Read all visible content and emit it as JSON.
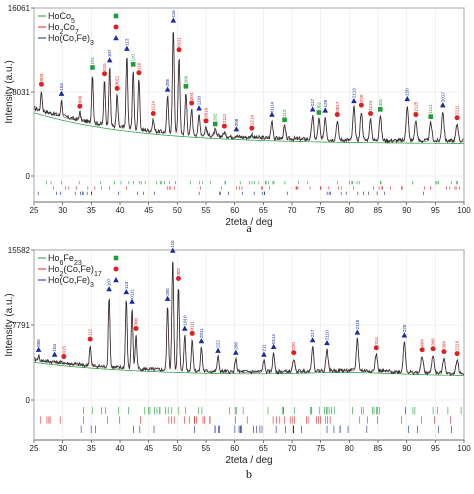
{
  "colors": {
    "ho2co17": "#1e9e3a",
    "ho1co5": "#e02020",
    "hocofe": "#1a2aa0",
    "observed": "#303030",
    "calc": "#c06080"
  },
  "chart_data": [
    {
      "type": "line",
      "panel_label": "a",
      "xlabel": "2teta / deg",
      "ylabel": "Intensity (a.u.)",
      "xlim": [
        25,
        100
      ],
      "ylim": [
        0,
        16061
      ],
      "yticks": [
        "0",
        "8031",
        "16061"
      ],
      "ytick_values": [
        0,
        8031,
        16061
      ],
      "xticks": [
        25,
        30,
        35,
        40,
        45,
        50,
        55,
        60,
        65,
        70,
        75,
        80,
        85,
        90,
        95,
        100
      ],
      "grid": true,
      "legend": {
        "position": "top-left",
        "entries": [
          {
            "label": "HoCo5",
            "color": "#1e9e3a",
            "marker": "square"
          },
          {
            "label": "Ho2Co7",
            "color": "#e02020",
            "marker": "circle"
          },
          {
            "label": "Ho(Co,Fe)3",
            "color": "#1a2aa0",
            "marker": "triangle"
          }
        ]
      },
      "peaks": [
        {
          "x": 26.3,
          "y": 8200,
          "label": "003",
          "phase": 1
        },
        {
          "x": 29.8,
          "y": 7300,
          "label": "104",
          "phase": 2
        },
        {
          "x": 33.0,
          "y": 6100,
          "label": "006",
          "phase": 1
        },
        {
          "x": 35.2,
          "y": 9800,
          "label": "101",
          "phase": 0
        },
        {
          "x": 37.3,
          "y": 9200,
          "label": "015",
          "phase": 1
        },
        {
          "x": 38.2,
          "y": 10500,
          "label": "107",
          "phase": 2
        },
        {
          "x": 39.5,
          "y": 7800,
          "label": "0011",
          "phase": 1
        },
        {
          "x": 41.2,
          "y": 11600,
          "label": "113",
          "phase": 2
        },
        {
          "x": 42.3,
          "y": 10100,
          "label": "110",
          "phase": 0
        },
        {
          "x": 43.3,
          "y": 9300,
          "label": "116",
          "phase": 1
        },
        {
          "x": 45.8,
          "y": 5400,
          "label": "1114",
          "phase": 1
        },
        {
          "x": 48.3,
          "y": 7700,
          "label": "205",
          "phase": 2
        },
        {
          "x": 49.3,
          "y": 14300,
          "label": "116",
          "phase": 2
        },
        {
          "x": 50.3,
          "y": 11500,
          "label": "0111",
          "phase": 1
        },
        {
          "x": 51.5,
          "y": 8000,
          "label": "200",
          "phase": 0
        },
        {
          "x": 52.5,
          "y": 6400,
          "label": "204",
          "phase": 1
        },
        {
          "x": 53.8,
          "y": 5900,
          "label": "1110",
          "phase": 2
        },
        {
          "x": 55.0,
          "y": 4700,
          "label": "2010",
          "phase": 1
        },
        {
          "x": 56.6,
          "y": 4400,
          "label": "202",
          "phase": 0
        },
        {
          "x": 58.2,
          "y": 4200,
          "label": "2111",
          "phase": 1
        },
        {
          "x": 60.3,
          "y": 3900,
          "label": "208",
          "phase": 2
        },
        {
          "x": 63.0,
          "y": 4000,
          "label": "1214",
          "phase": 1
        },
        {
          "x": 66.5,
          "y": 5300,
          "label": "0114",
          "phase": 2
        },
        {
          "x": 68.7,
          "y": 4800,
          "label": "113",
          "phase": 0
        },
        {
          "x": 73.6,
          "y": 5800,
          "label": "217",
          "phase": 2
        },
        {
          "x": 74.7,
          "y": 5500,
          "label": "302",
          "phase": 0
        },
        {
          "x": 75.8,
          "y": 5700,
          "label": "128",
          "phase": 2
        },
        {
          "x": 77.9,
          "y": 5300,
          "label": "0017",
          "phase": 1
        },
        {
          "x": 80.8,
          "y": 6600,
          "label": "2119",
          "phase": 2
        },
        {
          "x": 82.1,
          "y": 6200,
          "label": "220",
          "phase": 1
        },
        {
          "x": 83.7,
          "y": 5400,
          "label": "1124",
          "phase": 1
        },
        {
          "x": 85.4,
          "y": 5800,
          "label": "301",
          "phase": 0
        },
        {
          "x": 90.1,
          "y": 6800,
          "label": "220",
          "phase": 2
        },
        {
          "x": 91.6,
          "y": 5300,
          "label": "2125",
          "phase": 1
        },
        {
          "x": 94.2,
          "y": 5100,
          "label": "1111",
          "phase": 0
        },
        {
          "x": 96.3,
          "y": 6200,
          "label": "2017",
          "phase": 2
        },
        {
          "x": 98.8,
          "y": 5000,
          "label": "2111",
          "phase": 1
        }
      ]
    },
    {
      "type": "line",
      "panel_label": "b",
      "xlabel": "2teta / deg",
      "ylabel": "Intensity (a.u.)",
      "xlim": [
        25,
        100
      ],
      "ylim": [
        0,
        15582
      ],
      "yticks": [
        "0",
        "7791",
        "15582"
      ],
      "ytick_values": [
        0,
        7791,
        15582
      ],
      "xticks": [
        25,
        30,
        35,
        40,
        45,
        50,
        55,
        60,
        65,
        70,
        75,
        80,
        85,
        90,
        95,
        100
      ],
      "grid": true,
      "legend": {
        "position": "top-left",
        "entries": [
          {
            "label": "Ho6Fe23",
            "color": "#1e9e3a",
            "marker": "square"
          },
          {
            "label": "Ho2(Co,Fe)17",
            "color": "#e02020",
            "marker": "circle"
          },
          {
            "label": "Ho(Co,Fe)3",
            "color": "#1a2aa0",
            "marker": "triangle"
          }
        ]
      },
      "peaks": [
        {
          "x": 25.8,
          "y": 4600,
          "label": "006",
          "phase": 2
        },
        {
          "x": 28.6,
          "y": 4100,
          "label": "104",
          "phase": 2
        },
        {
          "x": 30.2,
          "y": 3900,
          "label": "015",
          "phase": 1
        },
        {
          "x": 34.8,
          "y": 5700,
          "label": "112",
          "phase": 1
        },
        {
          "x": 38.1,
          "y": 10900,
          "label": "107",
          "phase": 2
        },
        {
          "x": 41.1,
          "y": 10600,
          "label": "113",
          "phase": 2
        },
        {
          "x": 42.1,
          "y": 9600,
          "label": "0111",
          "phase": 2
        },
        {
          "x": 42.8,
          "y": 6800,
          "label": "300",
          "phase": 1
        },
        {
          "x": 48.3,
          "y": 9900,
          "label": "205",
          "phase": 2
        },
        {
          "x": 49.2,
          "y": 14900,
          "label": "116",
          "phase": 2
        },
        {
          "x": 50.2,
          "y": 12000,
          "label": "302",
          "phase": 1
        },
        {
          "x": 51.3,
          "y": 6800,
          "label": "1010",
          "phase": 2
        },
        {
          "x": 52.6,
          "y": 6300,
          "label": "0111",
          "phase": 1
        },
        {
          "x": 54.2,
          "y": 5500,
          "label": "2011",
          "phase": 2
        },
        {
          "x": 57.1,
          "y": 4500,
          "label": "222",
          "phase": 2
        },
        {
          "x": 60.2,
          "y": 4300,
          "label": "208",
          "phase": 2
        },
        {
          "x": 65.1,
          "y": 4100,
          "label": "211",
          "phase": 2
        },
        {
          "x": 66.8,
          "y": 4900,
          "label": "0114",
          "phase": 2
        },
        {
          "x": 70.3,
          "y": 4300,
          "label": "220",
          "phase": 1
        },
        {
          "x": 73.6,
          "y": 5600,
          "label": "217",
          "phase": 2
        },
        {
          "x": 76.1,
          "y": 5300,
          "label": "2110",
          "phase": 2
        },
        {
          "x": 81.4,
          "y": 6400,
          "label": "2116",
          "phase": 2
        },
        {
          "x": 84.7,
          "y": 4800,
          "label": "314",
          "phase": 1
        },
        {
          "x": 89.6,
          "y": 6100,
          "label": "220",
          "phase": 2
        },
        {
          "x": 92.7,
          "y": 4600,
          "label": "404",
          "phase": 1
        },
        {
          "x": 94.6,
          "y": 4700,
          "label": "306",
          "phase": 1
        },
        {
          "x": 96.5,
          "y": 4400,
          "label": "309",
          "phase": 1
        },
        {
          "x": 98.8,
          "y": 4200,
          "label": "2119",
          "phase": 1
        }
      ]
    }
  ]
}
